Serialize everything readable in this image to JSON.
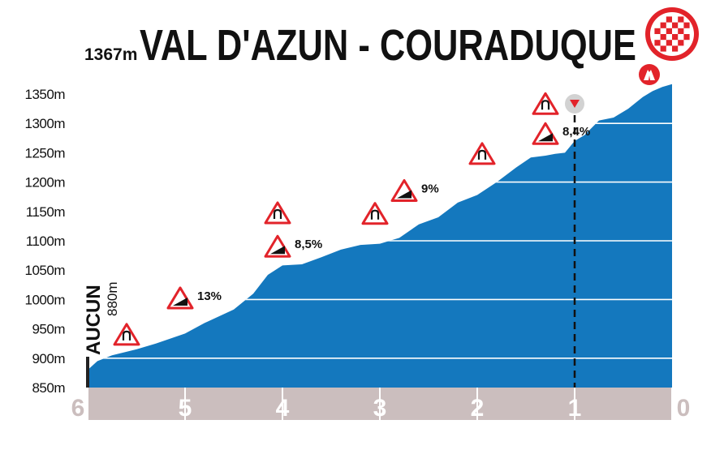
{
  "header": {
    "summit_altitude": "1367m",
    "title": "VAL D'AZUN - COURADUQUE",
    "finish_icon": "checkered-flag-icon",
    "summit_icon": "mountain-pass-icon"
  },
  "start": {
    "name": "AUCUN",
    "altitude": "880m"
  },
  "flamme_rouge_icon": "red-triangle-marker-icon",
  "chart_data": {
    "type": "area",
    "title": "VAL D'AZUN - COURADUQUE",
    "xlabel": "",
    "ylabel": "",
    "x_direction": "descending",
    "xlim": [
      6,
      0
    ],
    "ylim": [
      850,
      1367
    ],
    "x_ticks": [
      6,
      5,
      4,
      3,
      2,
      1,
      0
    ],
    "x_tick_labels": [
      "6",
      "5",
      "4",
      "3",
      "2",
      "1",
      "0"
    ],
    "y_ticks": [
      850,
      900,
      950,
      1000,
      1050,
      1100,
      1150,
      1200,
      1250,
      1300,
      1350
    ],
    "y_tick_labels": [
      "850m",
      "900m",
      "950m",
      "1000m",
      "1050m",
      "1100m",
      "1150m",
      "1200m",
      "1250m",
      "1300m",
      "1350m"
    ],
    "grid": true,
    "color": "#1478be",
    "series": [
      {
        "x": [
          6.0,
          5.9,
          5.75,
          5.5,
          5.3,
          5.0,
          4.8,
          4.5,
          4.3,
          4.15,
          4.0,
          3.8,
          3.6,
          3.4,
          3.2,
          3.0,
          2.8,
          2.6,
          2.4,
          2.2,
          2.0,
          1.8,
          1.6,
          1.45,
          1.3,
          1.2,
          1.1,
          1.0,
          0.9,
          0.75,
          0.6,
          0.45,
          0.3,
          0.2,
          0.1,
          0.0
        ],
        "y": [
          880,
          895,
          905,
          915,
          925,
          942,
          960,
          983,
          1010,
          1042,
          1058,
          1060,
          1072,
          1085,
          1093,
          1095,
          1105,
          1128,
          1140,
          1165,
          1178,
          1200,
          1225,
          1242,
          1245,
          1248,
          1250,
          1270,
          1280,
          1305,
          1310,
          1325,
          1345,
          1355,
          1362,
          1367
        ]
      }
    ],
    "marker_km": 1,
    "annotations": [
      {
        "km": 5.6,
        "elevation": 940,
        "type": "hairpin",
        "icon": "hairpin-left-sign-icon"
      },
      {
        "km": 5.05,
        "elevation": 1002,
        "type": "gradient",
        "label": "13%",
        "icon": "gradient-sign-icon"
      },
      {
        "km": 4.05,
        "elevation": 1147,
        "type": "hairpin",
        "icon": "hairpin-right-sign-icon"
      },
      {
        "km": 4.05,
        "elevation": 1090,
        "type": "gradient",
        "label": "8,5%",
        "icon": "gradient-sign-icon"
      },
      {
        "km": 3.05,
        "elevation": 1146,
        "type": "hairpin",
        "icon": "hairpin-left-sign-icon"
      },
      {
        "km": 2.75,
        "elevation": 1185,
        "type": "gradient",
        "label": "9%",
        "icon": "gradient-sign-icon"
      },
      {
        "km": 1.95,
        "elevation": 1248,
        "type": "hairpin",
        "icon": "hairpin-left-sign-icon"
      },
      {
        "km": 1.3,
        "elevation": 1282,
        "type": "gradient",
        "label": "8,4%",
        "icon": "gradient-sign-icon"
      },
      {
        "km": 1.3,
        "elevation": 1333,
        "type": "hairpin",
        "icon": "hairpin-right-sign-icon"
      }
    ]
  }
}
